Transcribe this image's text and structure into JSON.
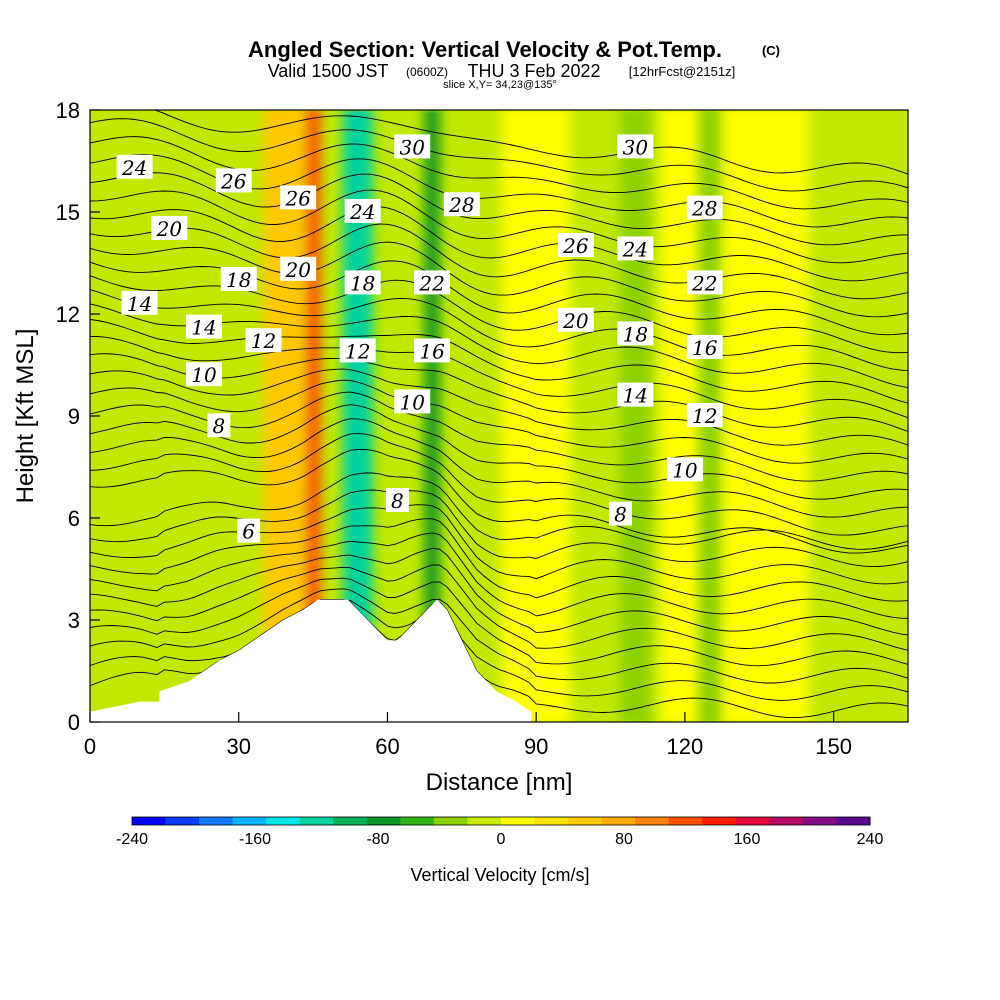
{
  "chart_data": {
    "type": "heatmap",
    "title": "Angled Section: Vertical Velocity & Pot.Temp.",
    "title_mark": "(C)",
    "subtitle_parts": {
      "valid": "Valid 1500 JST",
      "zulu": "(0600Z)",
      "date": "THU 3 Feb 2022",
      "fcst": "[12hrFcst@2151z]"
    },
    "slice": "slice X,Y= 34,23@135°",
    "xlabel": "Distance [nm]",
    "ylabel": "Height [Kft MSL]",
    "xlim": [
      0,
      165
    ],
    "ylim": [
      0,
      18
    ],
    "x_ticks": [
      "0",
      "30",
      "60",
      "90",
      "120",
      "150"
    ],
    "y_ticks": [
      "0",
      "3",
      "6",
      "9",
      "12",
      "15",
      "18"
    ],
    "colorbar": {
      "label": "Vertical Velocity [cm/s]",
      "range": [
        -240,
        240
      ],
      "ticks": [
        "-240",
        "-160",
        "-80",
        "0",
        "80",
        "160",
        "240"
      ],
      "colors": [
        "#0000ff",
        "#0a3cff",
        "#1478ff",
        "#00b4ff",
        "#00e6e6",
        "#00d2a0",
        "#00b45a",
        "#0a9628",
        "#32b414",
        "#8cd200",
        "#c8eb00",
        "#ffff00",
        "#ffe100",
        "#ffc800",
        "#ffaa00",
        "#ff8200",
        "#ff5000",
        "#ff1e00",
        "#e60a3c",
        "#b40a64",
        "#820a82",
        "#5a0a8c"
      ]
    },
    "terrain_kft": [
      {
        "x": 0,
        "h": 0.3
      },
      {
        "x": 10,
        "h": 0.6
      },
      {
        "x": 14,
        "h": 0.6
      },
      {
        "x": 14,
        "h": 0.9
      },
      {
        "x": 20,
        "h": 1.2
      },
      {
        "x": 23,
        "h": 1.5
      },
      {
        "x": 26,
        "h": 1.8
      },
      {
        "x": 30,
        "h": 2.1
      },
      {
        "x": 33,
        "h": 2.4
      },
      {
        "x": 36,
        "h": 2.7
      },
      {
        "x": 39,
        "h": 3.0
      },
      {
        "x": 43,
        "h": 3.3
      },
      {
        "x": 46,
        "h": 3.6
      },
      {
        "x": 52,
        "h": 3.6
      },
      {
        "x": 54,
        "h": 3.3
      },
      {
        "x": 56,
        "h": 3.0
      },
      {
        "x": 58,
        "h": 2.7
      },
      {
        "x": 60,
        "h": 2.4
      },
      {
        "x": 62,
        "h": 2.4
      },
      {
        "x": 64,
        "h": 2.7
      },
      {
        "x": 66,
        "h": 3.0
      },
      {
        "x": 68,
        "h": 3.3
      },
      {
        "x": 70,
        "h": 3.6
      },
      {
        "x": 72,
        "h": 3.3
      },
      {
        "x": 74,
        "h": 2.7
      },
      {
        "x": 76,
        "h": 2.1
      },
      {
        "x": 78,
        "h": 1.5
      },
      {
        "x": 82,
        "h": 0.9
      },
      {
        "x": 86,
        "h": 0.6
      },
      {
        "x": 89,
        "h": 0.3
      }
    ],
    "updraft_bands": [
      {
        "x": 45,
        "w": 3,
        "w_val": 120
      },
      {
        "x": 39,
        "w": 8,
        "w_val": 60
      },
      {
        "x": 90,
        "w": 14,
        "w_val": 20
      },
      {
        "x": 130,
        "w": 30,
        "w_val": 10
      }
    ],
    "downdraft_bands": [
      {
        "x": 54,
        "w": 6,
        "w_val": -120
      },
      {
        "x": 69,
        "w": 3,
        "w_val": -80
      },
      {
        "x": 110,
        "w": 6,
        "w_val": -40
      },
      {
        "x": 125,
        "w": 5,
        "w_val": -30
      }
    ],
    "isentrope_labels": [
      {
        "value": "24",
        "x": 9,
        "y": 16.3
      },
      {
        "value": "26",
        "x": 29,
        "y": 15.9
      },
      {
        "value": "26",
        "x": 42,
        "y": 15.4
      },
      {
        "value": "30",
        "x": 65,
        "y": 16.9
      },
      {
        "value": "30",
        "x": 110,
        "y": 16.9
      },
      {
        "value": "20",
        "x": 16,
        "y": 14.5
      },
      {
        "value": "24",
        "x": 55,
        "y": 15.0
      },
      {
        "value": "28",
        "x": 75,
        "y": 15.2
      },
      {
        "value": "28",
        "x": 124,
        "y": 15.1
      },
      {
        "value": "26",
        "x": 98,
        "y": 14.0
      },
      {
        "value": "24",
        "x": 110,
        "y": 13.9
      },
      {
        "value": "18",
        "x": 30,
        "y": 13.0
      },
      {
        "value": "20",
        "x": 42,
        "y": 13.3
      },
      {
        "value": "18",
        "x": 55,
        "y": 12.9
      },
      {
        "value": "22",
        "x": 69,
        "y": 12.9
      },
      {
        "value": "22",
        "x": 124,
        "y": 12.9
      },
      {
        "value": "14",
        "x": 10,
        "y": 12.3
      },
      {
        "value": "14",
        "x": 23,
        "y": 11.6
      },
      {
        "value": "12",
        "x": 35,
        "y": 11.2
      },
      {
        "value": "20",
        "x": 98,
        "y": 11.8
      },
      {
        "value": "18",
        "x": 110,
        "y": 11.4
      },
      {
        "value": "12",
        "x": 54,
        "y": 10.9
      },
      {
        "value": "16",
        "x": 69,
        "y": 10.9
      },
      {
        "value": "16",
        "x": 124,
        "y": 11.0
      },
      {
        "value": "10",
        "x": 23,
        "y": 10.2
      },
      {
        "value": "14",
        "x": 110,
        "y": 9.6
      },
      {
        "value": "10",
        "x": 65,
        "y": 9.4
      },
      {
        "value": "8",
        "x": 26,
        "y": 8.7
      },
      {
        "value": "12",
        "x": 124,
        "y": 9.0
      },
      {
        "value": "10",
        "x": 120,
        "y": 7.4
      },
      {
        "value": "8",
        "x": 62,
        "y": 6.5
      },
      {
        "value": "8",
        "x": 107,
        "y": 6.1
      },
      {
        "value": "6",
        "x": 32,
        "y": 5.6
      }
    ]
  }
}
